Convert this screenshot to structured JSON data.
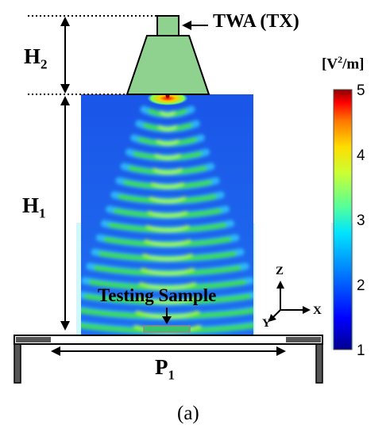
{
  "figure": {
    "caption": "(a)",
    "source_label": "TWA (TX)",
    "h2_label": "H",
    "h2_sub": "2",
    "h1_label": "H",
    "h1_sub": "1",
    "p1_label": "P",
    "p1_sub": "1",
    "sample_label": "Testing Sample"
  },
  "axes": {
    "z": "Z",
    "x": "X",
    "y": "Y"
  },
  "colorbar": {
    "unit_prefix": "[V",
    "unit_sup": "2",
    "unit_suffix": "/m]",
    "ticks": [
      "5",
      "4",
      "3",
      "2",
      "1"
    ],
    "range": [
      1,
      5
    ],
    "colors": [
      "#00008f",
      "#0000ff",
      "#007fff",
      "#00ffff",
      "#7fff7f",
      "#ffff00",
      "#ff7f00",
      "#ff0000",
      "#800000"
    ]
  },
  "colors": {
    "horn_fill": "#8fd18f",
    "field_background": "#1a55e8",
    "band": "#3ddc3a",
    "bench": "#000000"
  }
}
